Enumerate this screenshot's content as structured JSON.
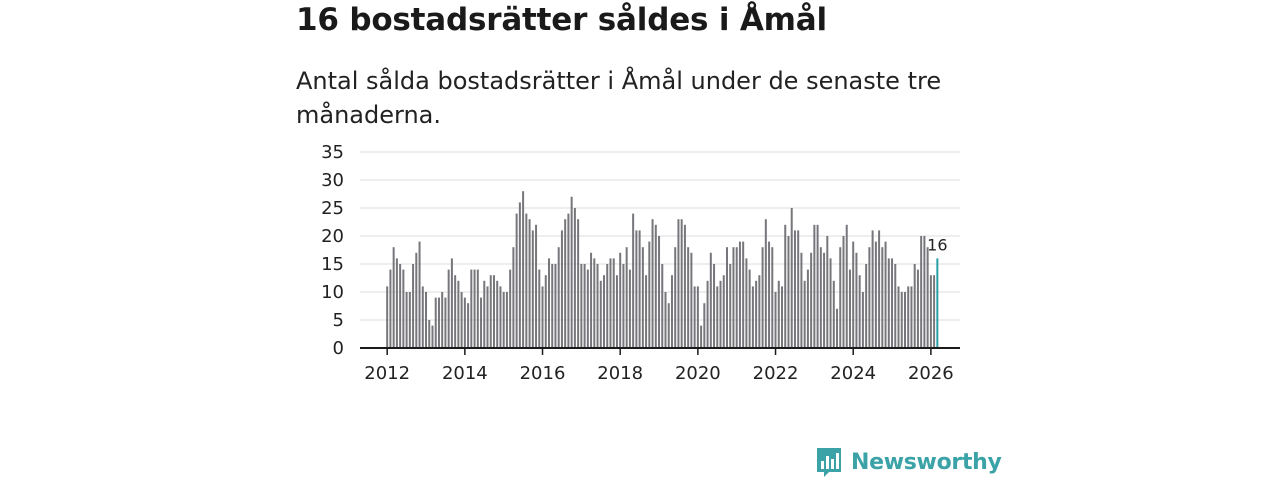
{
  "header": {
    "title": "16 bostadsrätter såldes i Åmål",
    "subtitle": "Antal sålda bostadsrätter i Åmål under de senaste tre månaderna."
  },
  "branding": {
    "name": "Newsworthy",
    "icon": "newsworthy-logo-icon"
  },
  "colors": {
    "bar": "#77767b",
    "highlight": "#2a9fa6",
    "grid": "#dcdcdc",
    "axis": "#1a1a1a"
  },
  "chart_data": {
    "type": "bar",
    "title": "Antal sålda bostadsrätter i Åmål under de senaste tre månaderna.",
    "xlabel": "",
    "ylabel": "",
    "ylim": [
      0,
      35
    ],
    "yticks": [
      "0",
      "5",
      "10",
      "15",
      "20",
      "25",
      "30",
      "35"
    ],
    "xticks": [
      "2012",
      "2014",
      "2016",
      "2018",
      "2020",
      "2022",
      "2024",
      "2026"
    ],
    "x_start": 2012.0,
    "x_step": 0.0833333,
    "x_range": [
      2011.3,
      2026.75
    ],
    "values": [
      11,
      14,
      18,
      16,
      15,
      14,
      10,
      10,
      15,
      17,
      19,
      11,
      10,
      5,
      4,
      9,
      9,
      10,
      9,
      14,
      16,
      13,
      12,
      10,
      9,
      8,
      14,
      14,
      14,
      9,
      12,
      11,
      13,
      13,
      12,
      11,
      10,
      10,
      14,
      18,
      24,
      26,
      28,
      24,
      23,
      21,
      22,
      14,
      11,
      13,
      16,
      15,
      15,
      18,
      21,
      23,
      24,
      27,
      25,
      23,
      15,
      15,
      14,
      17,
      16,
      15,
      12,
      13,
      15,
      16,
      16,
      13,
      17,
      15,
      18,
      14,
      24,
      21,
      21,
      18,
      13,
      19,
      23,
      22,
      20,
      15,
      10,
      8,
      13,
      18,
      23,
      23,
      22,
      18,
      17,
      11,
      11,
      4,
      8,
      12,
      17,
      15,
      11,
      12,
      13,
      18,
      15,
      18,
      18,
      19,
      19,
      16,
      14,
      11,
      12,
      13,
      18,
      23,
      19,
      18,
      10,
      12,
      11,
      22,
      20,
      25,
      21,
      21,
      17,
      12,
      14,
      17,
      22,
      22,
      18,
      17,
      20,
      16,
      12,
      7,
      18,
      20,
      22,
      14,
      19,
      17,
      13,
      10,
      15,
      18,
      21,
      19,
      21,
      18,
      19,
      16,
      16,
      15,
      11,
      10,
      10,
      11,
      11,
      15,
      14,
      20,
      20,
      18,
      13,
      13,
      16
    ],
    "highlight": {
      "index": 170,
      "value": 16,
      "label": "16"
    }
  }
}
